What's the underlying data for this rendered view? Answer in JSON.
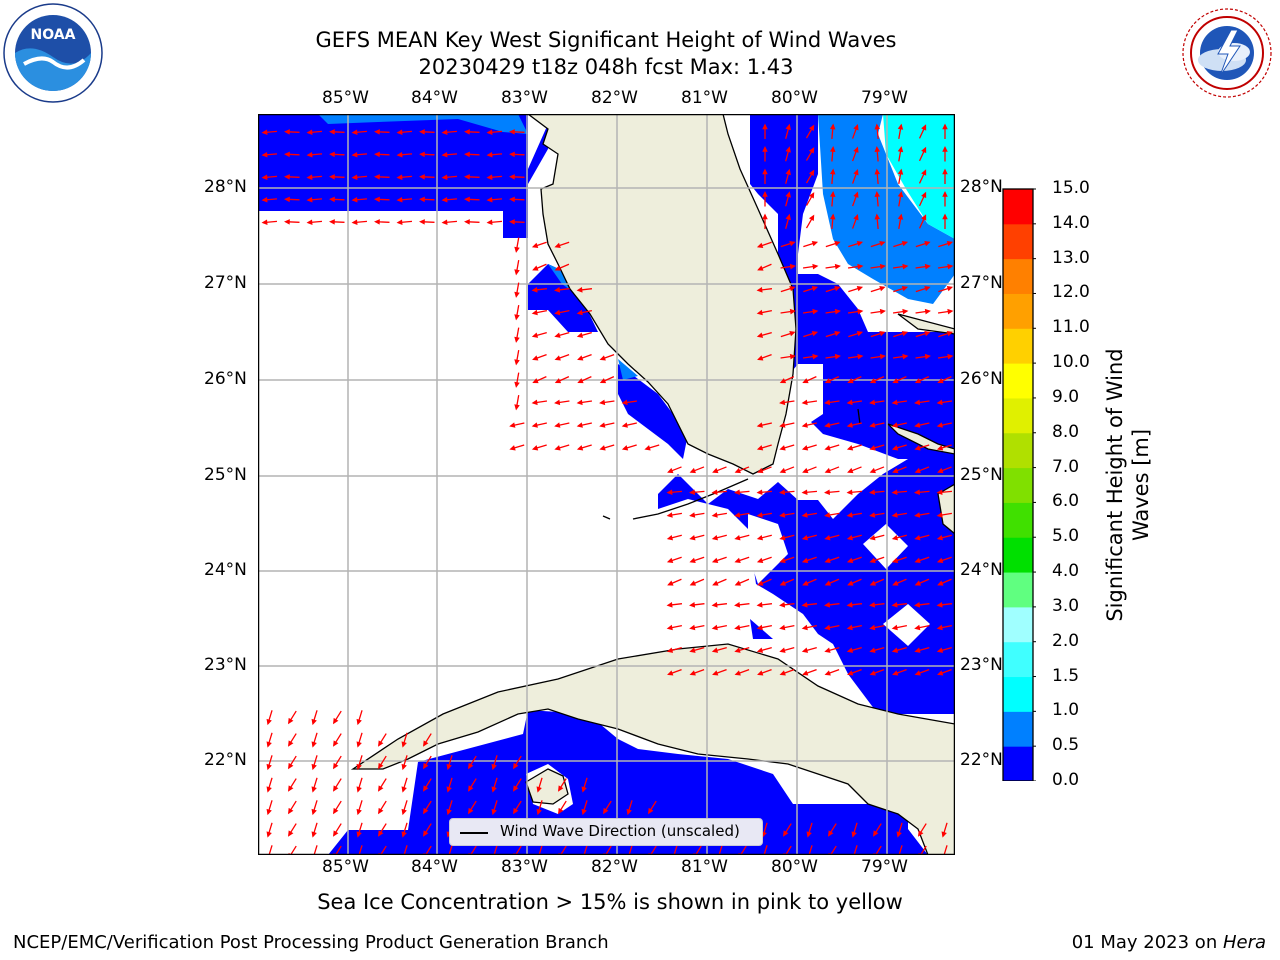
{
  "title_line1": "GEFS MEAN Key West Significant Height of Wind Waves",
  "title_line2": "20230429 t18z 048h fcst   Max: 1.43",
  "lon_labels": [
    "85°W",
    "84°W",
    "83°W",
    "82°W",
    "81°W",
    "80°W",
    "79°W"
  ],
  "lat_labels": [
    "28°N",
    "27°N",
    "26°N",
    "25°N",
    "24°N",
    "23°N",
    "22°N"
  ],
  "legend_label": "Wind Wave Direction (unscaled)",
  "colorbar": {
    "title_line1": "Significant Height of Wind",
    "title_line2": "Waves [m]",
    "ticks": [
      "0.0",
      "0.5",
      "1.0",
      "1.5",
      "2.0",
      "3.0",
      "4.0",
      "5.0",
      "6.0",
      "7.0",
      "8.0",
      "9.0",
      "10.0",
      "11.0",
      "12.0",
      "13.0",
      "14.0",
      "15.0"
    ],
    "colors": [
      "#0000ff",
      "#0080ff",
      "#00ffff",
      "#40ffff",
      "#a0ffff",
      "#60ff80",
      "#00e000",
      "#40e000",
      "#80e000",
      "#b0e000",
      "#e0f000",
      "#ffff00",
      "#ffd000",
      "#ffa000",
      "#ff8000",
      "#ff4000",
      "#ff0000"
    ]
  },
  "sea_ice_note": "Sea Ice Concentration > 15% is shown in pink to yellow",
  "footer_left": "NCEP/EMC/Verification Post Processing Product Generation Branch",
  "footer_right_date": "01 May 2023 on ",
  "footer_right_host": "Hera",
  "logos": {
    "left": "NOAA",
    "right": "NATIONAL WEATHER SERVICE"
  },
  "colors": {
    "land": "#eeeedc",
    "wave_low": "#0000ff",
    "wave_mid": "#0080ff",
    "wave_high": "#00ffff",
    "arrow": "#ff0000",
    "grid": "#b4b4b4"
  }
}
